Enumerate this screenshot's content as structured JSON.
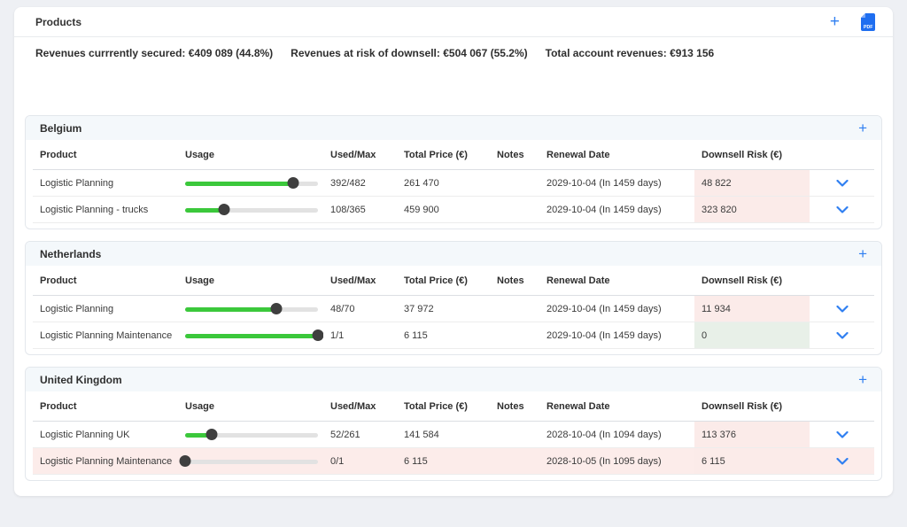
{
  "header": {
    "title": "Products",
    "add_label": "+",
    "export_icon": "pdf-export-icon",
    "export_icon_text": "PDF"
  },
  "summary": [
    {
      "label": "Revenues currrently secured:",
      "value": "€409 089 (44.8%)"
    },
    {
      "label": "Revenues at risk of downsell:",
      "value": "€504 067 (55.2%)"
    },
    {
      "label": "Total account revenues:",
      "value": "€913 156"
    }
  ],
  "columns": [
    "Product",
    "Usage",
    "Used/Max",
    "Total Price (€)",
    "Notes",
    "Renewal Date",
    "Downsell Risk (€)"
  ],
  "section_add_label": "+",
  "colors": {
    "accent_blue": "#2f7ff1",
    "slider_green": "#3bc83b",
    "risk_cell_bg": "#fbebe9",
    "safe_cell_bg": "#e8f0e8",
    "risk_row_bg": "#fcecea",
    "section_header_bg": "#f4f8fb"
  },
  "sections": [
    {
      "name": "Belgium",
      "rows": [
        {
          "product": "Logistic Planning",
          "usage_pct": 81.3,
          "used_max": "392/482",
          "total_price": "261 470",
          "notes": "",
          "renewal_date": "2029-10-04 (In 1459 days)",
          "downsell_risk": "48 822",
          "risk_level": "risk",
          "row_highlight": false
        },
        {
          "product": "Logistic Planning - trucks",
          "usage_pct": 29.6,
          "used_max": "108/365",
          "total_price": "459 900",
          "notes": "",
          "renewal_date": "2029-10-04 (In 1459 days)",
          "downsell_risk": "323 820",
          "risk_level": "risk",
          "row_highlight": false
        }
      ]
    },
    {
      "name": "Netherlands",
      "rows": [
        {
          "product": "Logistic Planning",
          "usage_pct": 68.6,
          "used_max": "48/70",
          "total_price": "37 972",
          "notes": "",
          "renewal_date": "2029-10-04 (In 1459 days)",
          "downsell_risk": "11 934",
          "risk_level": "risk",
          "row_highlight": false
        },
        {
          "product": "Logistic Planning Maintenance",
          "usage_pct": 100,
          "used_max": "1/1",
          "total_price": "6 115",
          "notes": "",
          "renewal_date": "2029-10-04 (In 1459 days)",
          "downsell_risk": "0",
          "risk_level": "safe",
          "row_highlight": false
        }
      ]
    },
    {
      "name": "United Kingdom",
      "rows": [
        {
          "product": "Logistic Planning UK",
          "usage_pct": 19.9,
          "used_max": "52/261",
          "total_price": "141 584",
          "notes": "",
          "renewal_date": "2028-10-04 (In 1094 days)",
          "downsell_risk": "113 376",
          "risk_level": "risk",
          "row_highlight": false
        },
        {
          "product": "Logistic Planning Maintenance",
          "usage_pct": 0,
          "used_max": "0/1",
          "total_price": "6 115",
          "notes": "",
          "renewal_date": "2028-10-05 (In 1095 days)",
          "downsell_risk": "6 115",
          "risk_level": "risk",
          "row_highlight": true
        }
      ]
    }
  ]
}
